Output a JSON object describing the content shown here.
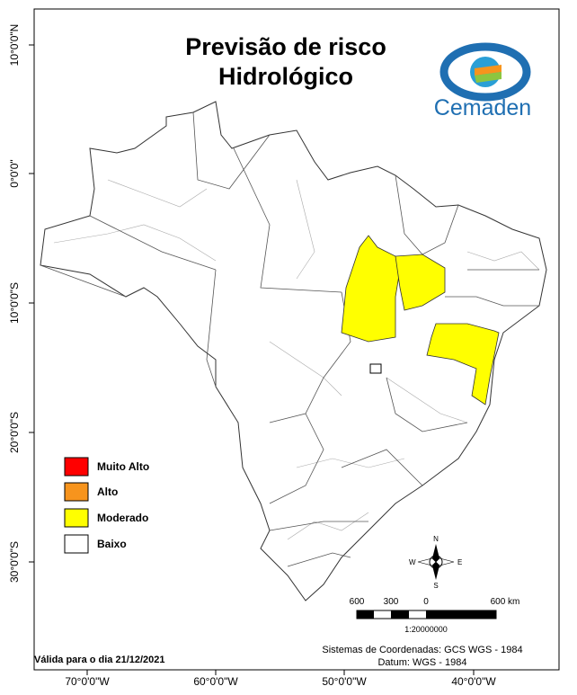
{
  "title": {
    "lines": [
      "Previsão de risco",
      "Hidrológico"
    ]
  },
  "logo": {
    "text": "Cemaden"
  },
  "axes": {
    "left": [
      "10°0'0\"N",
      "0°0'0\"",
      "10°0'0\"S",
      "20°0'0\"S",
      "30°0'0\"S"
    ],
    "bottom": [
      "70°0'0\"W",
      "60°0'0\"W",
      "50°0'0\"W",
      "40°0'0\"W"
    ]
  },
  "legend": {
    "items": [
      {
        "label": "Muito Alto",
        "color": "#ff0000"
      },
      {
        "label": "Alto",
        "color": "#f7941d"
      },
      {
        "label": "Moderado",
        "color": "#ffff00"
      },
      {
        "label": "Baixo",
        "color": "#ffffff"
      }
    ]
  },
  "compass": {
    "n": "N",
    "s": "S",
    "e": "E",
    "w": "W"
  },
  "scale": {
    "labels": [
      "600",
      "300",
      "0",
      "600 km"
    ],
    "ratio": "1:20000000"
  },
  "footer": {
    "date": "Válida para o dia 21/12/2021",
    "coords": "Sistemas de Coordenadas: GCS WGS - 1984",
    "datum": "Datum: WGS - 1984"
  }
}
